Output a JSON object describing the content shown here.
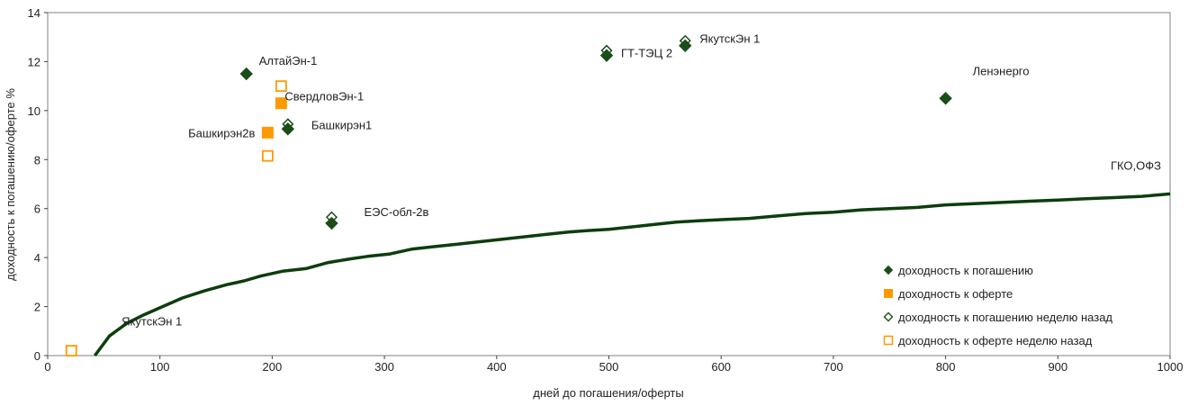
{
  "chart_data": {
    "type": "scatter",
    "title": "",
    "xlabel": "дней до погашения/оферты",
    "ylabel": "доходность к погашению/оферте %",
    "xlim": [
      0,
      1000
    ],
    "ylim": [
      0,
      14
    ],
    "xticks": [
      0,
      100,
      200,
      300,
      400,
      500,
      600,
      700,
      800,
      900,
      1000
    ],
    "yticks": [
      0,
      2,
      4,
      6,
      8,
      10,
      12,
      14
    ],
    "grid": "dashed",
    "legend_position": "bottom-right",
    "series": [
      {
        "name": "доходность к погашению",
        "marker": "filled-diamond",
        "color": "#1a4d1a",
        "points": [
          {
            "x": 177,
            "y": 11.5
          },
          {
            "x": 214,
            "y": 9.25
          },
          {
            "x": 253,
            "y": 5.4
          },
          {
            "x": 498,
            "y": 12.25
          },
          {
            "x": 568,
            "y": 12.65
          },
          {
            "x": 800,
            "y": 10.5
          }
        ]
      },
      {
        "name": "доходность к оферте",
        "marker": "filled-square",
        "color": "#ff9900",
        "points": [
          {
            "x": 196,
            "y": 9.1
          },
          {
            "x": 208,
            "y": 10.3
          }
        ]
      },
      {
        "name": "доходность к погашению неделю назад",
        "marker": "open-diamond",
        "color": "#1a4d1a",
        "points": [
          {
            "x": 214,
            "y": 9.45
          },
          {
            "x": 253,
            "y": 5.65
          },
          {
            "x": 498,
            "y": 12.45
          },
          {
            "x": 568,
            "y": 12.85
          }
        ]
      },
      {
        "name": "доходность к оферте неделю назад",
        "marker": "open-square",
        "color": "#ff9900",
        "points": [
          {
            "x": 21,
            "y": 0.2
          },
          {
            "x": 196,
            "y": 8.15
          },
          {
            "x": 208,
            "y": 11.0
          }
        ]
      }
    ],
    "curve": {
      "name": "ГКО,ОФЗ",
      "color": "#0d3d0d",
      "x": [
        42,
        55,
        70,
        85,
        100,
        120,
        140,
        160,
        175,
        190,
        210,
        230,
        250,
        270,
        285,
        305,
        325,
        345,
        365,
        385,
        405,
        425,
        445,
        465,
        480,
        500,
        520,
        540,
        560,
        580,
        600,
        625,
        650,
        675,
        700,
        725,
        750,
        775,
        800,
        825,
        850,
        875,
        900,
        925,
        950,
        975,
        1000
      ],
      "y": [
        0,
        0.8,
        1.3,
        1.65,
        1.95,
        2.35,
        2.65,
        2.9,
        3.05,
        3.25,
        3.45,
        3.55,
        3.8,
        3.95,
        4.05,
        4.15,
        4.35,
        4.45,
        4.55,
        4.65,
        4.75,
        4.85,
        4.95,
        5.05,
        5.1,
        5.15,
        5.25,
        5.35,
        5.45,
        5.5,
        5.55,
        5.6,
        5.7,
        5.8,
        5.85,
        5.95,
        6.0,
        6.05,
        6.15,
        6.2,
        6.25,
        6.3,
        6.35,
        6.4,
        6.45,
        6.5,
        6.6
      ]
    },
    "annotations": [
      {
        "text": "АлтайЭн-1",
        "x": 177,
        "y": 11.5
      },
      {
        "text": "СвердловЭн-1",
        "x": 208,
        "y": 10.3
      },
      {
        "text": "Башкирэн2в",
        "x": 196,
        "y": 9.1
      },
      {
        "text": "Башкирэн1",
        "x": 214,
        "y": 9.25
      },
      {
        "text": "ЕЭС-обл-2в",
        "x": 253,
        "y": 5.4
      },
      {
        "text": "ГТ-ТЭЦ 2",
        "x": 498,
        "y": 12.25
      },
      {
        "text": "ЯкутскЭн 1",
        "x": 568,
        "y": 12.65
      },
      {
        "text": "Ленэнерго",
        "x": 800,
        "y": 10.5
      },
      {
        "text": "ГКО,ОФЗ",
        "x": 1000,
        "y": 6.6
      },
      {
        "text": "ЯкутскЭн 1",
        "x": 21,
        "y": 0.2
      }
    ]
  }
}
